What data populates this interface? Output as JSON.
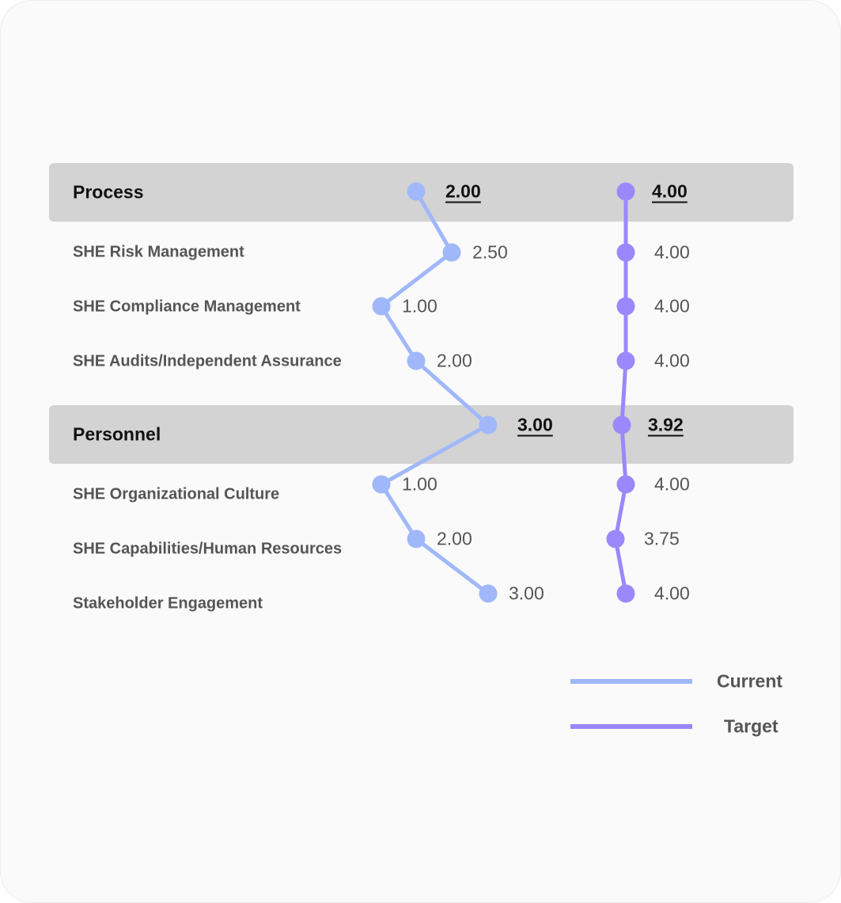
{
  "chart_data": {
    "type": "line",
    "title": "",
    "rows": [
      {
        "label": "Process",
        "kind": "group",
        "current": "2.00",
        "target": "4.00"
      },
      {
        "label": "SHE Risk Management",
        "kind": "item",
        "current": "2.50",
        "target": "4.00"
      },
      {
        "label": "SHE Compliance Management",
        "kind": "item",
        "current": "1.00",
        "target": "4.00"
      },
      {
        "label": "SHE Audits/Independent Assurance",
        "kind": "item",
        "current": "2.00",
        "target": "4.00"
      },
      {
        "label": "Personnel",
        "kind": "group",
        "current": "3.00",
        "target": "3.92"
      },
      {
        "label": "SHE Organizational Culture",
        "kind": "item",
        "current": "1.00",
        "target": "4.00"
      },
      {
        "label": "SHE Capabilities/Human Resources",
        "kind": "item",
        "current": "2.00",
        "target": "3.75"
      },
      {
        "label": "Stakeholder Engagement",
        "kind": "item",
        "current": "3.00",
        "target": "4.00"
      }
    ],
    "series": [
      {
        "name": "Current",
        "color": "#a0b8fa",
        "values": [
          2.0,
          2.5,
          1.0,
          2.0,
          3.0,
          1.0,
          2.0,
          3.0
        ]
      },
      {
        "name": "Target",
        "color": "#9a88fc",
        "values": [
          4.0,
          4.0,
          4.0,
          4.0,
          3.92,
          4.0,
          3.75,
          4.0
        ]
      }
    ],
    "legend": {
      "position": "bottom-right",
      "entries": [
        "Current",
        "Target"
      ]
    }
  }
}
